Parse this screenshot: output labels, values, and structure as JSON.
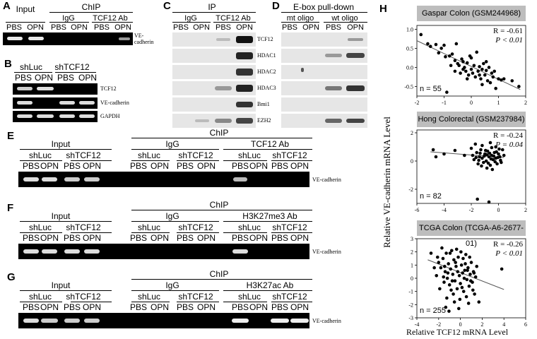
{
  "panels": {
    "A": {
      "label": "A",
      "top_groups": [
        "Input",
        "ChIP"
      ],
      "groups": [
        "IgG",
        "TCF12 Ab"
      ],
      "lanes": [
        "PBS",
        "OPN",
        "PBS",
        "OPN",
        "PBS",
        "OPN"
      ],
      "row_label": "VE-cadherin"
    },
    "B": {
      "label": "B",
      "groups": [
        "shLuc",
        "shTCF12"
      ],
      "lanes": [
        "PBS",
        "OPN",
        "PBS",
        "OPN"
      ],
      "rows": [
        "TCF12",
        "VE-cadherin",
        "GAPDH"
      ]
    },
    "C": {
      "label": "C",
      "title": "IP",
      "groups": [
        "IgG",
        "TCF12 Ab"
      ],
      "lanes": [
        "PBS",
        "OPN",
        "PBS",
        "OPN"
      ],
      "rows": [
        "TCF12",
        "HDAC1",
        "HDAC2",
        "HDAC3",
        "Bmi1",
        "EZH2"
      ]
    },
    "D": {
      "label": "D",
      "title": "E-box pull-down",
      "groups": [
        "mt oligo",
        "wt oligo"
      ],
      "lanes": [
        "PBS",
        "OPN",
        "PBS",
        "OPN"
      ]
    },
    "E": {
      "label": "E",
      "title": "ChIP",
      "groups": [
        "Input",
        "IgG",
        "TCF12 Ab"
      ],
      "subgroups": [
        "shLuc",
        "shTCF12",
        "shLuc",
        "shTCF12",
        "shLuc",
        "shTCF12"
      ],
      "lanes": [
        "PBS",
        "OPN",
        "PBS",
        "OPN",
        "PBS",
        "OPN",
        "PBS",
        "OPN",
        "PBS",
        "OPN",
        "PBS",
        "OPN"
      ],
      "row_label": "VE-cadherin"
    },
    "F": {
      "label": "F",
      "title": "ChIP",
      "groups": [
        "Input",
        "IgG",
        "H3K27me3 Ab"
      ],
      "subgroups": [
        "shLuc",
        "shTCF12",
        "shLuc",
        "shTCF12",
        "shLuc",
        "shTCF12"
      ],
      "lanes": [
        "PBS",
        "OPN",
        "PBS",
        "OPN",
        "PBS",
        "OPN",
        "PBS",
        "OPN",
        "PBS",
        "OPN",
        "PBS",
        "OPN"
      ],
      "row_label": "VE-cadherin"
    },
    "G": {
      "label": "G",
      "title": "ChIP",
      "groups": [
        "Input",
        "IgG",
        "H3K27ac Ab"
      ],
      "subgroups": [
        "shLuc",
        "shTCF12",
        "shLuc",
        "shTCF12",
        "shLuc",
        "shTCF12"
      ],
      "lanes": [
        "PBS",
        "OPN",
        "PBS",
        "OPN",
        "PBS",
        "OPN",
        "PBS",
        "OPN",
        "PBS",
        "OPN",
        "PBS",
        "OPN"
      ],
      "row_label": "VE-cadherin"
    },
    "H": {
      "label": "H",
      "ylabel": "Relative VE-cadherin mRNA Level",
      "xlabel": "Relative TCF12 mRNA Level"
    }
  },
  "chart_data": [
    {
      "type": "scatter",
      "title": "Gaspar Colon (GSM244968)",
      "R": "R = -0.61",
      "P": "P < 0.01",
      "n": "n = 55",
      "xlim": [
        -2,
        2
      ],
      "ylim": [
        -0.75,
        1.1
      ],
      "xticks": [
        "-2",
        "-1",
        "0",
        "1",
        "2"
      ],
      "yticks": [
        "-0.5",
        "0.0",
        "0.5",
        "1.0"
      ],
      "yticks_values": [
        -0.5,
        0,
        0.5,
        1.0
      ],
      "xticks_values": [
        -2,
        -1,
        0,
        1,
        2
      ],
      "trend": [
        [
          -2,
          0.7
        ],
        [
          1.8,
          -0.58
        ]
      ],
      "points": [
        [
          -1.85,
          0.86
        ],
        [
          -1.6,
          0.62
        ],
        [
          -1.5,
          0.55
        ],
        [
          -1.3,
          0.6
        ],
        [
          -1.1,
          0.5
        ],
        [
          -1.0,
          0.58
        ],
        [
          -0.95,
          0.28
        ],
        [
          -0.8,
          0.3
        ],
        [
          -0.7,
          0.35
        ],
        [
          -0.6,
          0.18
        ],
        [
          -0.55,
          0.62
        ],
        [
          -0.5,
          0.1
        ],
        [
          -0.45,
          0.05
        ],
        [
          -0.4,
          -0.15
        ],
        [
          -0.35,
          0.22
        ],
        [
          -0.3,
          -0.05
        ],
        [
          -0.25,
          0.0
        ],
        [
          -0.2,
          -0.1
        ],
        [
          -0.15,
          0.12
        ],
        [
          -0.1,
          -0.2
        ],
        [
          -0.05,
          0.3
        ],
        [
          0.0,
          -0.05
        ],
        [
          0.05,
          -0.15
        ],
        [
          0.1,
          0.05
        ],
        [
          0.15,
          -0.25
        ],
        [
          0.2,
          0.4
        ],
        [
          0.25,
          -0.1
        ],
        [
          0.3,
          0.02
        ],
        [
          0.35,
          -0.3
        ],
        [
          0.4,
          -0.05
        ],
        [
          0.45,
          0.1
        ],
        [
          0.5,
          -0.2
        ],
        [
          0.55,
          -0.08
        ],
        [
          0.6,
          -0.35
        ],
        [
          0.65,
          0.0
        ],
        [
          0.7,
          -0.4
        ],
        [
          0.75,
          -0.15
        ],
        [
          0.8,
          -0.25
        ],
        [
          0.9,
          -0.55
        ],
        [
          1.0,
          -0.3
        ],
        [
          1.1,
          -0.33
        ],
        [
          1.2,
          -0.3
        ],
        [
          1.5,
          -0.35
        ],
        [
          1.75,
          -0.5
        ],
        [
          -0.9,
          -0.65
        ],
        [
          -0.75,
          0.05
        ],
        [
          -0.6,
          -0.1
        ],
        [
          -0.3,
          0.15
        ],
        [
          0.0,
          0.25
        ],
        [
          0.3,
          -0.2
        ],
        [
          0.55,
          0.15
        ],
        [
          0.85,
          -0.1
        ],
        [
          -1.2,
          0.38
        ],
        [
          -0.15,
          -0.3
        ],
        [
          0.4,
          -0.45
        ]
      ]
    },
    {
      "type": "scatter",
      "title": "Hong Colorectal (GSM237984)",
      "R": "R = -0.24",
      "P": "P = 0.04",
      "n": "n = 82",
      "xlim": [
        -6,
        2
      ],
      "ylim": [
        -3,
        2.2
      ],
      "xticks": [
        "-6",
        "-4",
        "-2",
        "0",
        "2"
      ],
      "yticks": [
        "-2",
        "0",
        "2"
      ],
      "yticks_values": [
        -2,
        0,
        2
      ],
      "xticks_values": [
        -6,
        -4,
        -2,
        0,
        2
      ],
      "trend": [
        [
          -5,
          0.65
        ],
        [
          0.4,
          0.25
        ]
      ],
      "points": [
        [
          -4.8,
          0.8
        ],
        [
          -4.6,
          0.3
        ],
        [
          -4.0,
          0.5
        ],
        [
          -3.2,
          0.75
        ],
        [
          -2.5,
          0.4
        ],
        [
          -2.0,
          0.9
        ],
        [
          -1.8,
          0.1
        ],
        [
          -1.6,
          0.6
        ],
        [
          -1.5,
          -0.2
        ],
        [
          -1.4,
          0.3
        ],
        [
          -1.3,
          0.8
        ],
        [
          -1.2,
          0.2
        ],
        [
          -1.1,
          -0.1
        ],
        [
          -1.0,
          0.5
        ],
        [
          -0.9,
          0.0
        ],
        [
          -0.8,
          0.7
        ],
        [
          -0.7,
          0.3
        ],
        [
          -0.6,
          -0.3
        ],
        [
          -0.5,
          0.4
        ],
        [
          -0.4,
          0.1
        ],
        [
          -0.3,
          0.6
        ],
        [
          -0.2,
          0.2
        ],
        [
          -0.1,
          -0.2
        ],
        [
          0.0,
          0.5
        ],
        [
          0.1,
          0.3
        ],
        [
          0.2,
          -0.1
        ],
        [
          0.3,
          0.8
        ],
        [
          0.4,
          0.4
        ],
        [
          -1.7,
          1.2
        ],
        [
          -1.2,
          1.1
        ],
        [
          -0.6,
          1.3
        ],
        [
          -0.2,
          1.0
        ],
        [
          -1.9,
          0.4
        ],
        [
          -0.85,
          -0.5
        ],
        [
          -0.45,
          -0.6
        ],
        [
          -1.55,
          -2.7
        ],
        [
          -0.7,
          -2.9
        ],
        [
          -1.35,
          0.55
        ],
        [
          -0.95,
          0.75
        ],
        [
          -0.55,
          0.15
        ],
        [
          -0.15,
          0.65
        ],
        [
          0.15,
          0.05
        ],
        [
          -1.05,
          0.35
        ],
        [
          -0.65,
          0.55
        ],
        [
          -0.25,
          -0.05
        ],
        [
          -1.45,
          0.05
        ],
        [
          -0.75,
          -0.15
        ],
        [
          -0.35,
          0.35
        ],
        [
          0.05,
          0.85
        ],
        [
          -1.25,
          -0.35
        ],
        [
          -0.85,
          0.45
        ],
        [
          -0.05,
          0.25
        ],
        [
          -1.65,
          0.25
        ],
        [
          -0.5,
          0.95
        ]
      ]
    },
    {
      "type": "scatter",
      "title": "TCGA Colon (TCGA-A6-2677-01)",
      "R": "R = -0.26",
      "P": "P < 0.01",
      "n": "n = 255",
      "xlim": [
        -4,
        6
      ],
      "ylim": [
        -3,
        3
      ],
      "xticks": [
        "-4",
        "-2",
        "0",
        "2",
        "4",
        "6"
      ],
      "yticks": [
        "-3",
        "-2",
        "-1",
        "0",
        "1",
        "2",
        "3"
      ],
      "yticks_values": [
        -3,
        -2,
        -1,
        0,
        1,
        2,
        3
      ],
      "xticks_values": [
        -4,
        -2,
        0,
        2,
        4,
        6
      ],
      "trend": [
        [
          -3,
          1.4
        ],
        [
          4,
          -0.85
        ]
      ],
      "points": [
        [
          -2.7,
          1.9
        ],
        [
          -2.2,
          0.2
        ],
        [
          -2.0,
          1.2
        ],
        [
          -1.8,
          0.8
        ],
        [
          -1.6,
          1.5
        ],
        [
          -1.5,
          -0.3
        ],
        [
          -1.4,
          0.5
        ],
        [
          -1.3,
          1.9
        ],
        [
          -1.2,
          0.0
        ],
        [
          -1.1,
          1.1
        ],
        [
          -1.0,
          -0.5
        ],
        [
          -0.9,
          0.7
        ],
        [
          -0.8,
          2.1
        ],
        [
          -0.7,
          0.3
        ],
        [
          -0.6,
          1.4
        ],
        [
          -0.5,
          -0.2
        ],
        [
          -0.4,
          0.9
        ],
        [
          -0.3,
          -0.8
        ],
        [
          -0.2,
          1.6
        ],
        [
          -0.1,
          0.2
        ],
        [
          0.0,
          -0.4
        ],
        [
          0.1,
          1.0
        ],
        [
          0.2,
          0.4
        ],
        [
          0.3,
          -1.0
        ],
        [
          0.4,
          0.6
        ],
        [
          0.5,
          1.8
        ],
        [
          0.6,
          -0.1
        ],
        [
          0.7,
          0.8
        ],
        [
          0.8,
          -0.6
        ],
        [
          0.9,
          0.3
        ],
        [
          1.0,
          1.2
        ],
        [
          1.1,
          -0.3
        ],
        [
          1.2,
          0.5
        ],
        [
          1.3,
          -1.2
        ],
        [
          1.4,
          0.1
        ],
        [
          1.5,
          0.9
        ],
        [
          -1.9,
          -0.8
        ],
        [
          -1.7,
          2.3
        ],
        [
          -1.25,
          -1.5
        ],
        [
          -0.95,
          1.9
        ],
        [
          -0.65,
          -1.2
        ],
        [
          -0.35,
          2.2
        ],
        [
          -0.05,
          -1.6
        ],
        [
          0.25,
          1.5
        ],
        [
          0.55,
          -1.4
        ],
        [
          0.85,
          1.6
        ],
        [
          1.15,
          -0.9
        ],
        [
          -1.45,
          0.9
        ],
        [
          -0.75,
          -0.2
        ],
        [
          -0.25,
          0.5
        ],
        [
          0.35,
          0.0
        ],
        [
          0.65,
          0.6
        ],
        [
          -1.15,
          0.4
        ],
        [
          -0.45,
          1.2
        ],
        [
          0.15,
          -0.7
        ],
        [
          0.95,
          -0.2
        ],
        [
          -2.4,
          0.8
        ],
        [
          -2.1,
          1.6
        ],
        [
          -1.55,
          0.1
        ],
        [
          -0.85,
          -0.9
        ],
        [
          0.45,
          1.1
        ],
        [
          1.25,
          0.4
        ],
        [
          -0.55,
          -1.8
        ],
        [
          0.05,
          2.0
        ],
        [
          -1.35,
          -2.2
        ],
        [
          3.8,
          0.7
        ],
        [
          1.7,
          -1.8
        ],
        [
          -0.15,
          -2.3
        ],
        [
          0.75,
          -1.9
        ],
        [
          -1.05,
          -2.5
        ]
      ]
    }
  ]
}
